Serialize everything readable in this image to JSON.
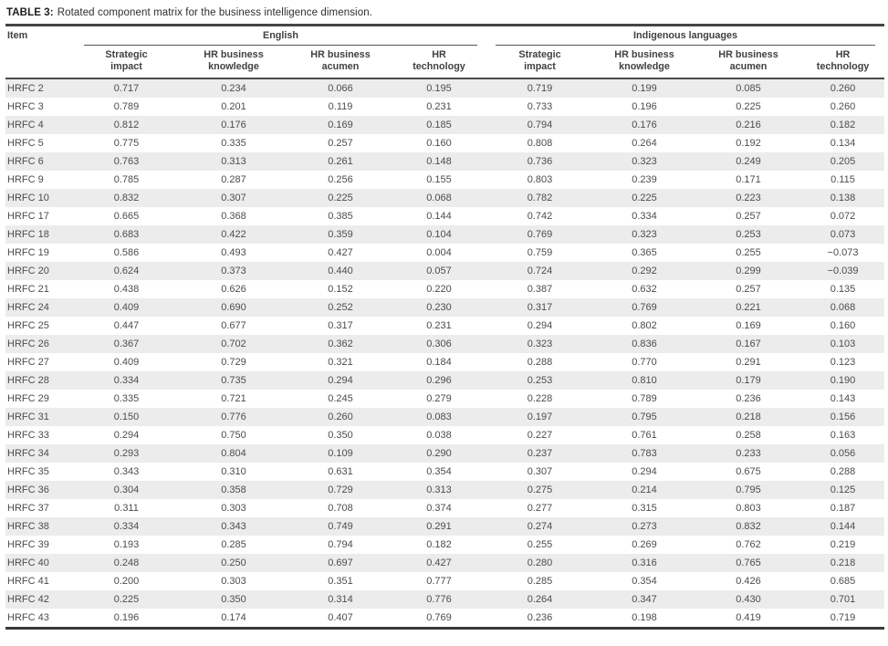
{
  "title": {
    "label": "TABLE 3:",
    "text": "Rotated component matrix for the business intelligence dimension."
  },
  "colors": {
    "stripe": "#ececec",
    "rule_dark": "#454547",
    "text": "#4c4c4e"
  },
  "table": {
    "item_header": "Item",
    "groups": [
      {
        "label": "English",
        "columns": [
          "Strategic\nimpact",
          "HR business\nknowledge",
          "HR business\nacumen",
          "HR\ntechnology"
        ]
      },
      {
        "label": "Indigenous languages",
        "columns": [
          "Strategic\nimpact",
          "HR business\nknowledge",
          "HR business\nacumen",
          "HR\ntechnology"
        ]
      }
    ],
    "rows": [
      {
        "item": "HRFC 2",
        "values": [
          "0.717",
          "0.234",
          "0.066",
          "0.195",
          "0.719",
          "0.199",
          "0.085",
          "0.260"
        ]
      },
      {
        "item": "HRFC 3",
        "values": [
          "0.789",
          "0.201",
          "0.119",
          "0.231",
          "0.733",
          "0.196",
          "0.225",
          "0.260"
        ]
      },
      {
        "item": "HRFC 4",
        "values": [
          "0.812",
          "0.176",
          "0.169",
          "0.185",
          "0.794",
          "0.176",
          "0.216",
          "0.182"
        ]
      },
      {
        "item": "HRFC 5",
        "values": [
          "0.775",
          "0.335",
          "0.257",
          "0.160",
          "0.808",
          "0.264",
          "0.192",
          "0.134"
        ]
      },
      {
        "item": "HRFC 6",
        "values": [
          "0.763",
          "0.313",
          "0.261",
          "0.148",
          "0.736",
          "0.323",
          "0.249",
          "0.205"
        ]
      },
      {
        "item": "HRFC 9",
        "values": [
          "0.785",
          "0.287",
          "0.256",
          "0.155",
          "0.803",
          "0.239",
          "0.171",
          "0.115"
        ]
      },
      {
        "item": "HRFC 10",
        "values": [
          "0.832",
          "0.307",
          "0.225",
          "0.068",
          "0.782",
          "0.225",
          "0.223",
          "0.138"
        ]
      },
      {
        "item": "HRFC 17",
        "values": [
          "0.665",
          "0.368",
          "0.385",
          "0.144",
          "0.742",
          "0.334",
          "0.257",
          "0.072"
        ]
      },
      {
        "item": "HRFC 18",
        "values": [
          "0.683",
          "0.422",
          "0.359",
          "0.104",
          "0.769",
          "0.323",
          "0.253",
          "0.073"
        ]
      },
      {
        "item": "HRFC 19",
        "values": [
          "0.586",
          "0.493",
          "0.427",
          "0.004",
          "0.759",
          "0.365",
          "0.255",
          "−0.073"
        ]
      },
      {
        "item": "HRFC 20",
        "values": [
          "0.624",
          "0.373",
          "0.440",
          "0.057",
          "0.724",
          "0.292",
          "0.299",
          "−0.039"
        ]
      },
      {
        "item": "HRFC 21",
        "values": [
          "0.438",
          "0.626",
          "0.152",
          "0.220",
          "0.387",
          "0.632",
          "0.257",
          "0.135"
        ]
      },
      {
        "item": "HRFC 24",
        "values": [
          "0.409",
          "0.690",
          "0.252",
          "0.230",
          "0.317",
          "0.769",
          "0.221",
          "0.068"
        ]
      },
      {
        "item": "HRFC 25",
        "values": [
          "0.447",
          "0.677",
          "0.317",
          "0.231",
          "0.294",
          "0.802",
          "0.169",
          "0.160"
        ]
      },
      {
        "item": "HRFC 26",
        "values": [
          "0.367",
          "0.702",
          "0.362",
          "0.306",
          "0.323",
          "0.836",
          "0.167",
          "0.103"
        ]
      },
      {
        "item": "HRFC 27",
        "values": [
          "0.409",
          "0.729",
          "0.321",
          "0.184",
          "0.288",
          "0.770",
          "0.291",
          "0.123"
        ]
      },
      {
        "item": "HRFC 28",
        "values": [
          "0.334",
          "0.735",
          "0.294",
          "0.296",
          "0.253",
          "0.810",
          "0.179",
          "0.190"
        ]
      },
      {
        "item": "HRFC 29",
        "values": [
          "0.335",
          "0.721",
          "0.245",
          "0.279",
          "0.228",
          "0.789",
          "0.236",
          "0.143"
        ]
      },
      {
        "item": "HRFC 31",
        "values": [
          "0.150",
          "0.776",
          "0.260",
          "0.083",
          "0.197",
          "0.795",
          "0.218",
          "0.156"
        ]
      },
      {
        "item": "HRFC 33",
        "values": [
          "0.294",
          "0.750",
          "0.350",
          "0.038",
          "0.227",
          "0.761",
          "0.258",
          "0.163"
        ]
      },
      {
        "item": "HRFC 34",
        "values": [
          "0.293",
          "0.804",
          "0.109",
          "0.290",
          "0.237",
          "0.783",
          "0.233",
          "0.056"
        ]
      },
      {
        "item": "HRFC 35",
        "values": [
          "0.343",
          "0.310",
          "0.631",
          "0.354",
          "0.307",
          "0.294",
          "0.675",
          "0.288"
        ]
      },
      {
        "item": "HRFC 36",
        "values": [
          "0.304",
          "0.358",
          "0.729",
          "0.313",
          "0.275",
          "0.214",
          "0.795",
          "0.125"
        ]
      },
      {
        "item": "HRFC 37",
        "values": [
          "0.311",
          "0.303",
          "0.708",
          "0.374",
          "0.277",
          "0.315",
          "0.803",
          "0.187"
        ]
      },
      {
        "item": "HRFC 38",
        "values": [
          "0.334",
          "0.343",
          "0.749",
          "0.291",
          "0.274",
          "0.273",
          "0.832",
          "0.144"
        ]
      },
      {
        "item": "HRFC 39",
        "values": [
          "0.193",
          "0.285",
          "0.794",
          "0.182",
          "0.255",
          "0.269",
          "0.762",
          "0.219"
        ]
      },
      {
        "item": "HRFC 40",
        "values": [
          "0.248",
          "0.250",
          "0.697",
          "0.427",
          "0.280",
          "0.316",
          "0.765",
          "0.218"
        ]
      },
      {
        "item": "HRFC 41",
        "values": [
          "0.200",
          "0.303",
          "0.351",
          "0.777",
          "0.285",
          "0.354",
          "0.426",
          "0.685"
        ]
      },
      {
        "item": "HRFC 42",
        "values": [
          "0.225",
          "0.350",
          "0.314",
          "0.776",
          "0.264",
          "0.347",
          "0.430",
          "0.701"
        ]
      },
      {
        "item": "HRFC 43",
        "values": [
          "0.196",
          "0.174",
          "0.407",
          "0.769",
          "0.236",
          "0.198",
          "0.419",
          "0.719"
        ]
      }
    ]
  }
}
